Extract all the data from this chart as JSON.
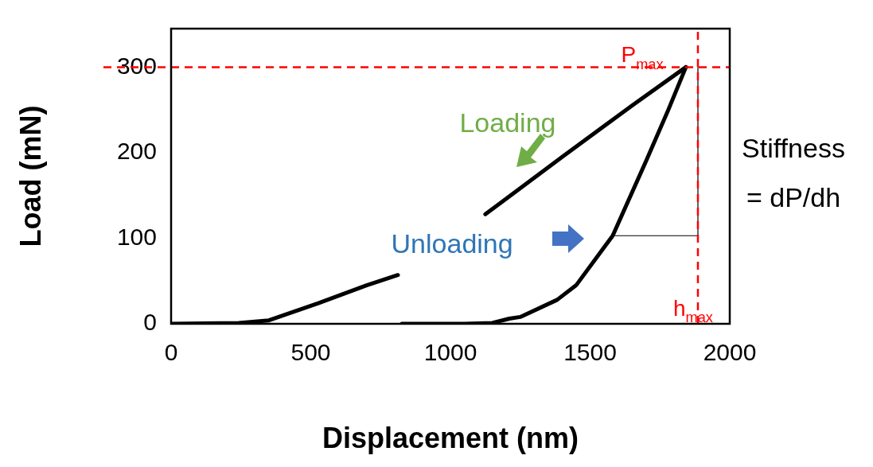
{
  "chart_data": {
    "type": "line",
    "xlabel": "Displacement (nm)",
    "ylabel": "Load (mN)",
    "xlim": [
      0,
      2000
    ],
    "xticks": [
      0,
      500,
      1000,
      1500,
      2000
    ],
    "ylim": [
      0,
      345
    ],
    "yticks": [
      0,
      100,
      200,
      300
    ],
    "series": [
      {
        "color": "#000000",
        "x": [
          0,
          242,
          350,
          527,
          700,
          812,
          950,
          1125,
          1400,
          1650,
          1843
        ],
        "values": [
          0,
          1,
          4,
          24,
          45,
          57,
          null,
          128,
          195,
          255,
          300
        ]
      },
      {
        "color": "#000000",
        "x": [
          1843,
          1780,
          1700,
          1581,
          1450,
          1382,
          1250,
          1211,
          1150,
          1050,
          826
        ],
        "values": [
          300,
          250,
          190,
          103,
          45,
          28,
          8,
          6,
          1,
          0,
          0
        ]
      },
      {
        "color": "#000000",
        "x": [
          1590,
          1886,
          1886
        ],
        "values": [
          103,
          103,
          300
        ]
      }
    ],
    "ref_lines": [
      {
        "axis": "y",
        "value": 300,
        "label": "P$_{max}$",
        "color": "#ff0000",
        "line_style": "dashed"
      },
      {
        "axis": "x",
        "value": 1886,
        "label": "h$_{max}$",
        "color": "#ff0000",
        "line_style": "dashed"
      }
    ],
    "annotations": [
      "Loading",
      "Unloading",
      "Stiffness",
      "= dP/dh"
    ],
    "grid": false,
    "legend": false,
    "marker": "none"
  }
}
